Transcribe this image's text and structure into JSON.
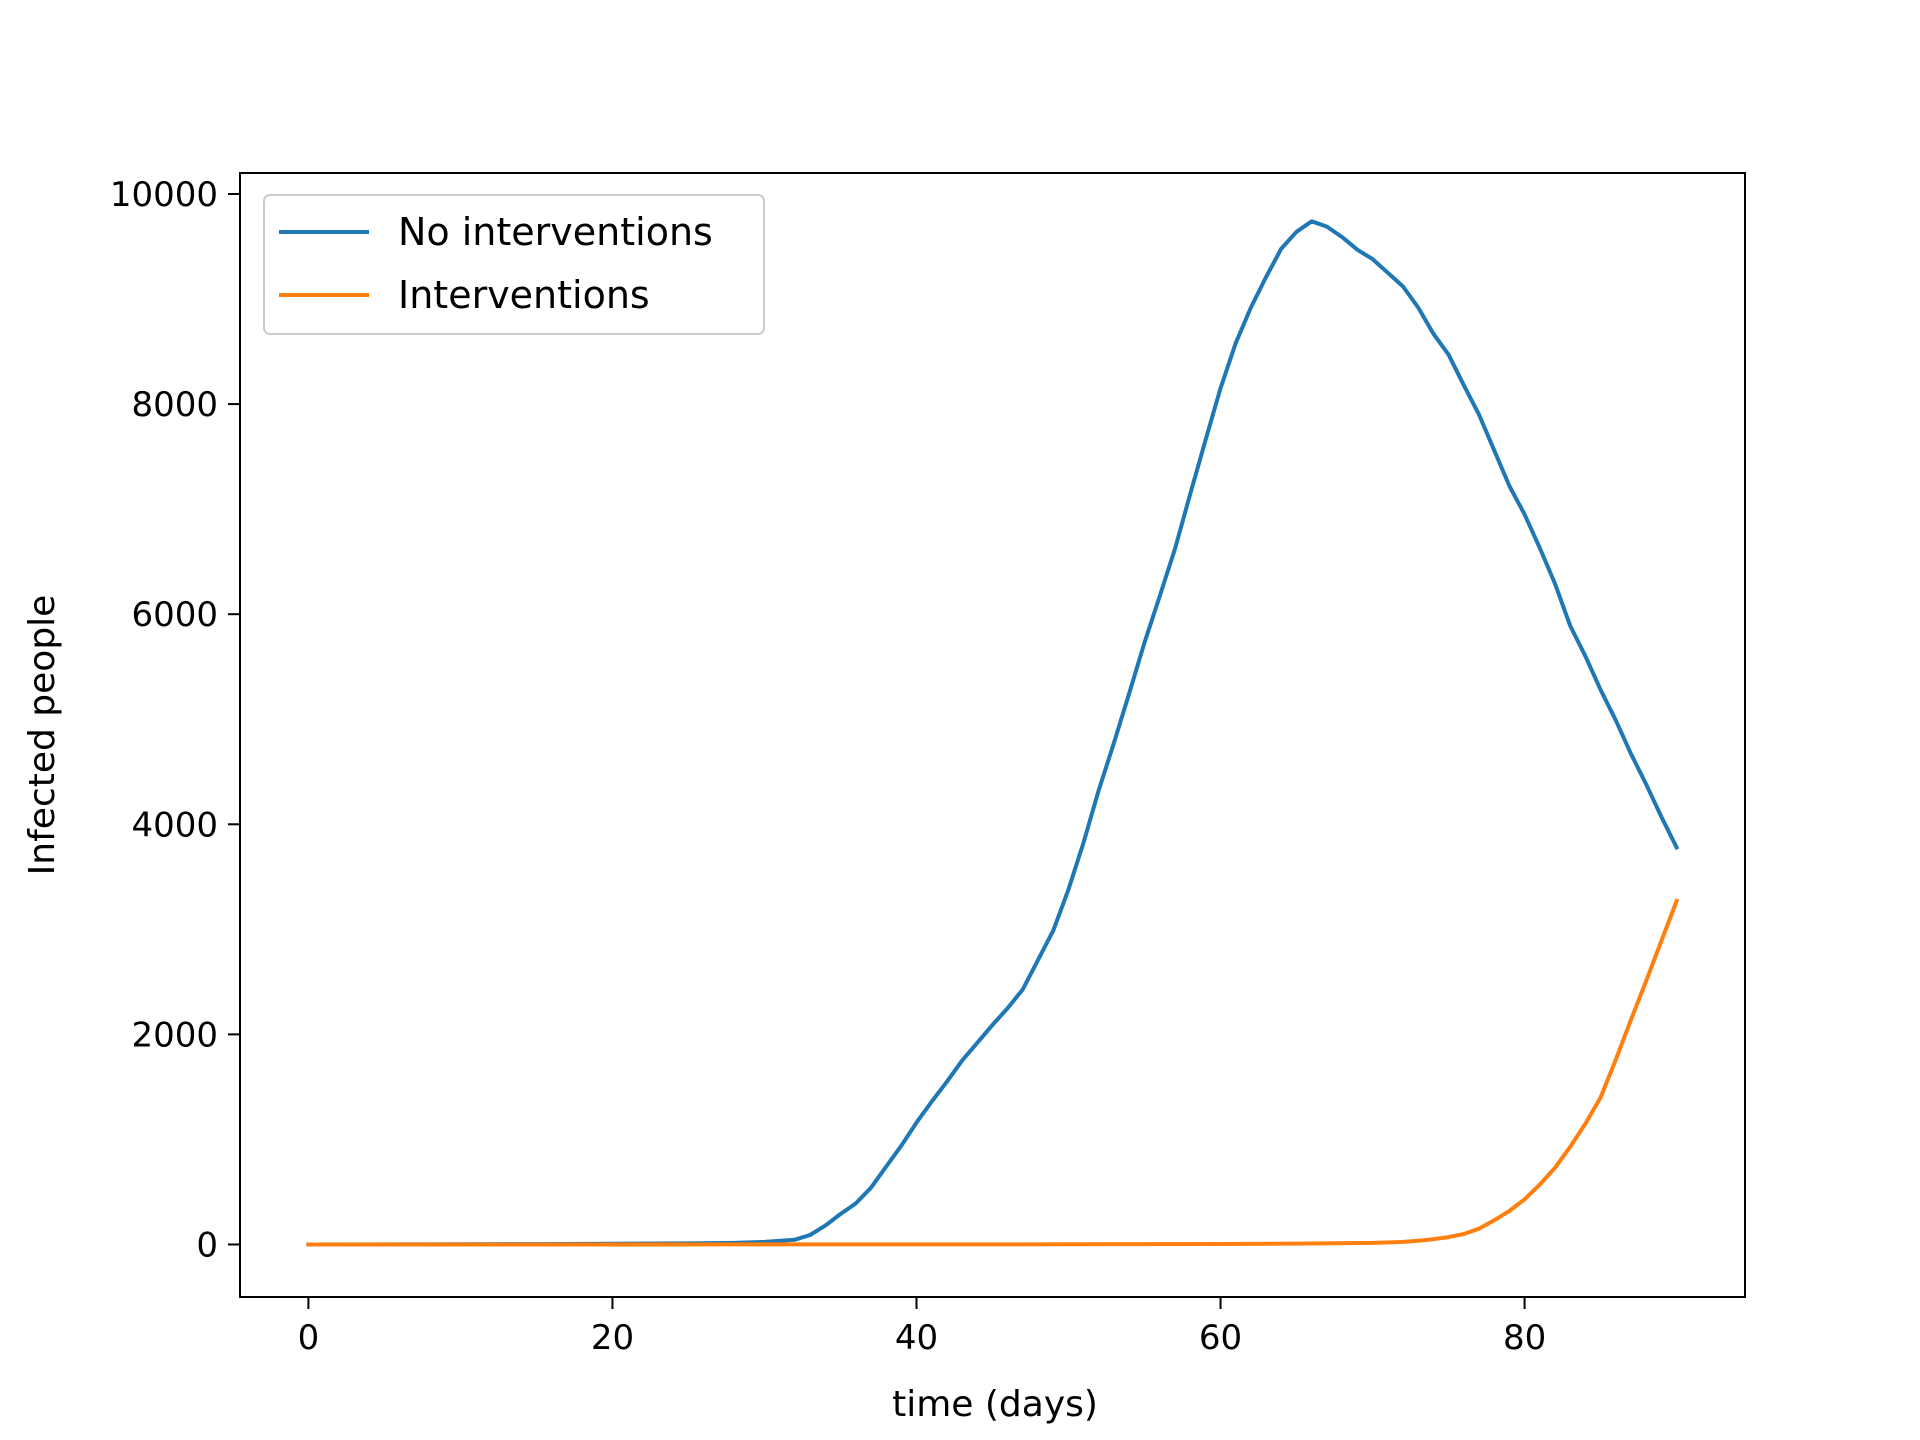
{
  "chart_data": {
    "type": "line",
    "title": "",
    "xlabel": "time (days)",
    "ylabel": "Infected people",
    "xlim": [
      -4.5,
      94.5
    ],
    "ylim": [
      -500,
      10200
    ],
    "xticks": [
      0,
      20,
      40,
      60,
      80
    ],
    "yticks": [
      0,
      2000,
      4000,
      6000,
      8000,
      10000
    ],
    "grid": false,
    "legend_position": "upper-left",
    "series": [
      {
        "name": "No interventions",
        "color": "#1f77b4",
        "x": [
          0,
          5,
          10,
          15,
          20,
          25,
          28,
          30,
          32,
          33,
          34,
          35,
          36,
          37,
          38,
          39,
          40,
          41,
          42,
          43,
          44,
          45,
          46,
          47,
          48,
          49,
          50,
          51,
          52,
          53,
          54,
          55,
          56,
          57,
          58,
          59,
          60,
          61,
          62,
          63,
          64,
          65,
          66,
          67,
          68,
          69,
          70,
          71,
          72,
          73,
          74,
          75,
          76,
          77,
          78,
          79,
          80,
          81,
          82,
          83,
          84,
          85,
          86,
          87,
          88,
          89,
          90
        ],
        "y": [
          0,
          1,
          2,
          4,
          6,
          10,
          15,
          25,
          45,
          90,
          180,
          290,
          390,
          540,
          740,
          940,
          1160,
          1360,
          1550,
          1750,
          1920,
          2090,
          2250,
          2430,
          2710,
          2990,
          3380,
          3830,
          4330,
          4780,
          5250,
          5730,
          6170,
          6620,
          7140,
          7650,
          8150,
          8580,
          8920,
          9210,
          9480,
          9640,
          9740,
          9690,
          9590,
          9470,
          9380,
          9250,
          9120,
          8920,
          8670,
          8470,
          8180,
          7900,
          7560,
          7220,
          6950,
          6630,
          6290,
          5890,
          5600,
          5280,
          4990,
          4670,
          4380,
          4070,
          3780
        ]
      },
      {
        "name": "Interventions",
        "color": "#ff7f0e",
        "x": [
          0,
          10,
          20,
          30,
          40,
          50,
          60,
          65,
          70,
          72,
          73,
          74,
          75,
          76,
          77,
          78,
          79,
          80,
          81,
          82,
          83,
          84,
          85,
          86,
          87,
          88,
          89,
          90
        ],
        "y": [
          0,
          0,
          0,
          1,
          1,
          2,
          5,
          8,
          15,
          25,
          35,
          50,
          70,
          100,
          150,
          230,
          320,
          430,
          570,
          730,
          930,
          1150,
          1400,
          1760,
          2140,
          2510,
          2890,
          3270
        ]
      }
    ]
  }
}
